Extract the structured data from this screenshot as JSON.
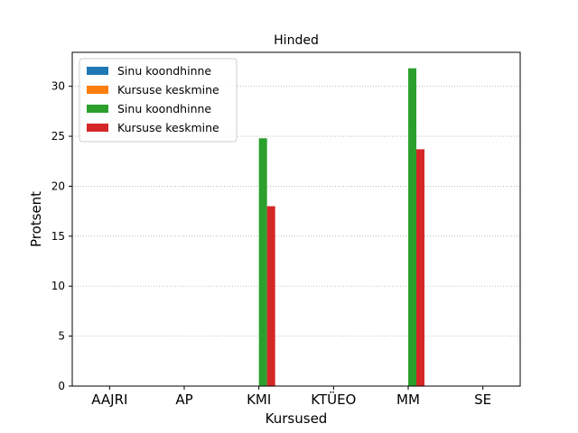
{
  "chart_data": {
    "type": "bar",
    "title": "Hinded",
    "xlabel": "Kursused",
    "ylabel": "Protsent",
    "categories": [
      "AAJRI",
      "AP",
      "KMI",
      "KTÜEO",
      "MM",
      "SE"
    ],
    "ylim": [
      0,
      33.4
    ],
    "yticks": [
      0,
      5,
      10,
      15,
      20,
      25,
      30
    ],
    "grid": "horizontal-dotted",
    "legend_position": "top-left",
    "series": [
      {
        "name": "Sinu koondhinne",
        "color": "#1f77b4",
        "values": [
          0,
          0,
          0,
          0,
          0,
          0
        ]
      },
      {
        "name": "Kursuse keskmine",
        "color": "#ff7f0e",
        "values": [
          0,
          0,
          0,
          0,
          0,
          0
        ]
      },
      {
        "name": "Sinu koondhinne",
        "color": "#2ca02c",
        "values": [
          0,
          0,
          24.8,
          0,
          31.8,
          0
        ]
      },
      {
        "name": "Kursuse keskmine",
        "color": "#d62728",
        "values": [
          0,
          0,
          18.0,
          0,
          23.7,
          0
        ]
      }
    ]
  }
}
